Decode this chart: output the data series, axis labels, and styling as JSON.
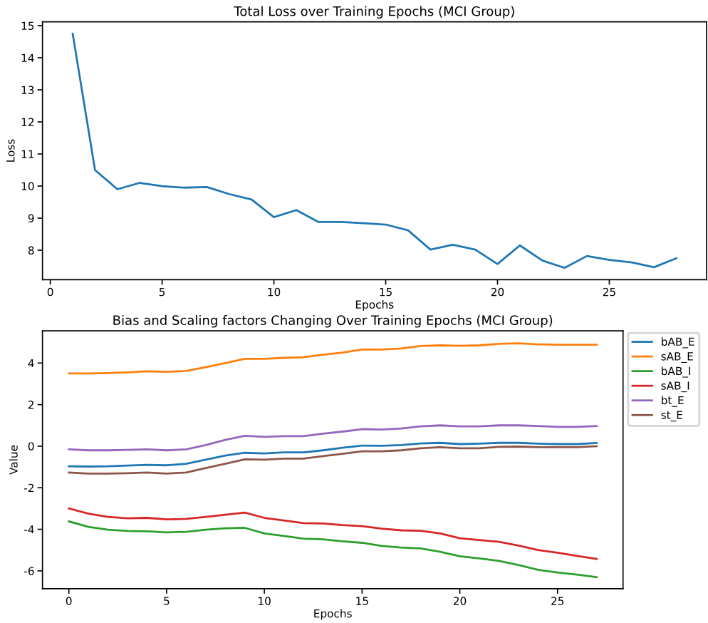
{
  "chart_data": [
    {
      "type": "line",
      "title": "Total Loss over Training Epochs (MCI Group)",
      "xlabel": "Epochs",
      "ylabel": "Loss",
      "x": [
        1,
        2,
        3,
        4,
        5,
        6,
        7,
        8,
        9,
        10,
        11,
        12,
        13,
        14,
        15,
        16,
        17,
        18,
        19,
        20,
        21,
        22,
        23,
        24,
        25,
        26,
        27,
        28
      ],
      "series": [
        {
          "color": "#1f77b4",
          "values": [
            14.75,
            10.5,
            9.9,
            10.1,
            10.0,
            9.95,
            9.97,
            9.75,
            9.58,
            9.03,
            9.25,
            8.88,
            8.88,
            8.84,
            8.8,
            8.62,
            8.02,
            8.17,
            8.02,
            7.57,
            8.15,
            7.68,
            7.45,
            7.82,
            7.7,
            7.62,
            7.47,
            7.75
          ]
        }
      ],
      "xlim": [
        -0.35,
        29.35
      ],
      "ylim": [
        7.08,
        15.12
      ],
      "xticks": [
        0,
        5,
        10,
        15,
        20,
        25
      ],
      "yticks": [
        8,
        9,
        10,
        11,
        12,
        13,
        14,
        15
      ],
      "grid": false,
      "legend": false
    },
    {
      "type": "line",
      "title": "Bias and Scaling factors Changing Over Training Epochs (MCI Group)",
      "xlabel": "Epochs",
      "ylabel": "Value",
      "x": [
        0,
        1,
        2,
        3,
        4,
        5,
        6,
        7,
        8,
        9,
        10,
        11,
        12,
        13,
        14,
        15,
        16,
        17,
        18,
        19,
        20,
        21,
        22,
        23,
        24,
        25,
        26,
        27
      ],
      "series": [
        {
          "name": "bAB_E",
          "color": "#1f77b4",
          "values": [
            -0.97,
            -0.98,
            -0.97,
            -0.93,
            -0.9,
            -0.92,
            -0.85,
            -0.65,
            -0.45,
            -0.32,
            -0.35,
            -0.3,
            -0.3,
            -0.2,
            -0.08,
            0.03,
            0.02,
            0.05,
            0.13,
            0.16,
            0.1,
            0.12,
            0.16,
            0.16,
            0.12,
            0.1,
            0.1,
            0.15
          ]
        },
        {
          "name": "sAB_E",
          "color": "#ff7f0e",
          "values": [
            3.5,
            3.5,
            3.52,
            3.55,
            3.6,
            3.58,
            3.62,
            3.8,
            4.0,
            4.2,
            4.2,
            4.25,
            4.28,
            4.4,
            4.5,
            4.65,
            4.65,
            4.7,
            4.82,
            4.85,
            4.83,
            4.85,
            4.92,
            4.95,
            4.9,
            4.88,
            4.88,
            4.88
          ]
        },
        {
          "name": "bAB_I",
          "color": "#2ca02c",
          "values": [
            -3.62,
            -3.88,
            -4.02,
            -4.08,
            -4.1,
            -4.15,
            -4.12,
            -4.02,
            -3.95,
            -3.93,
            -4.2,
            -4.32,
            -4.45,
            -4.48,
            -4.58,
            -4.65,
            -4.8,
            -4.88,
            -4.92,
            -5.08,
            -5.3,
            -5.4,
            -5.52,
            -5.72,
            -5.95,
            -6.08,
            -6.18,
            -6.3
          ]
        },
        {
          "name": "sAB_I",
          "color": "#d62728",
          "values": [
            -3.0,
            -3.25,
            -3.4,
            -3.47,
            -3.45,
            -3.52,
            -3.5,
            -3.4,
            -3.3,
            -3.2,
            -3.45,
            -3.57,
            -3.7,
            -3.72,
            -3.8,
            -3.85,
            -3.97,
            -4.05,
            -4.07,
            -4.2,
            -4.43,
            -4.52,
            -4.6,
            -4.78,
            -5.0,
            -5.13,
            -5.28,
            -5.43
          ]
        },
        {
          "name": "bt_E",
          "color": "#9467bd",
          "values": [
            -0.15,
            -0.2,
            -0.2,
            -0.18,
            -0.15,
            -0.2,
            -0.15,
            0.05,
            0.3,
            0.5,
            0.45,
            0.48,
            0.48,
            0.6,
            0.7,
            0.82,
            0.8,
            0.85,
            0.95,
            1.0,
            0.95,
            0.95,
            1.0,
            1.0,
            0.97,
            0.93,
            0.93,
            0.97
          ]
        },
        {
          "name": "st_E",
          "color": "#8c564b",
          "values": [
            -1.27,
            -1.32,
            -1.32,
            -1.3,
            -1.27,
            -1.32,
            -1.27,
            -1.05,
            -0.85,
            -0.63,
            -0.65,
            -0.6,
            -0.6,
            -0.48,
            -0.37,
            -0.25,
            -0.25,
            -0.2,
            -0.1,
            -0.05,
            -0.1,
            -0.1,
            -0.03,
            -0.02,
            -0.05,
            -0.05,
            -0.05,
            0.0
          ]
        }
      ],
      "xlim": [
        -1.35,
        28.35
      ],
      "ylim": [
        -6.86,
        5.55
      ],
      "xticks": [
        0,
        5,
        10,
        15,
        20,
        25
      ],
      "yticks": [
        -6,
        -4,
        -2,
        0,
        2,
        4
      ],
      "grid": false,
      "legend": "top right"
    }
  ]
}
